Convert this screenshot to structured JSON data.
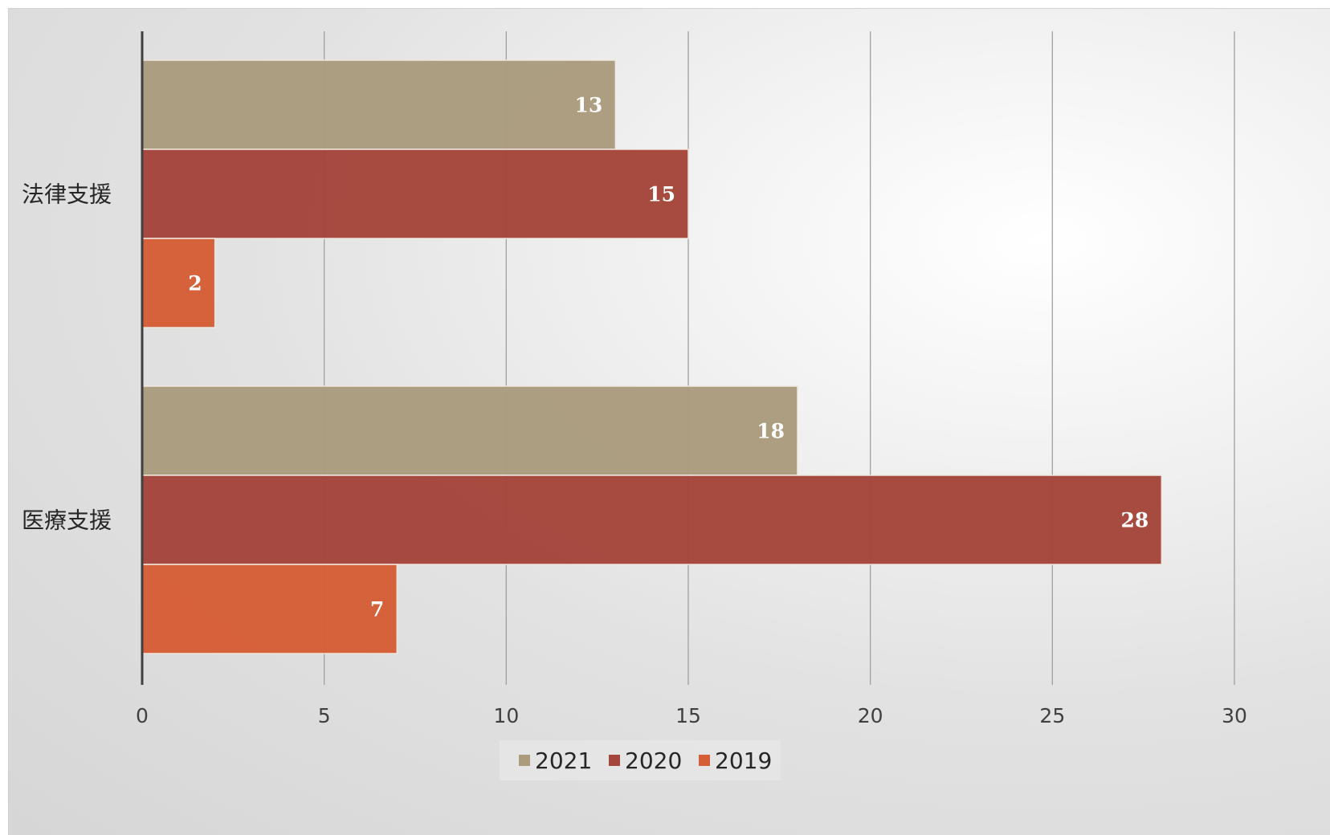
{
  "chart_data": {
    "type": "bar",
    "orientation": "horizontal",
    "categories": [
      "法律支援",
      "医療支援"
    ],
    "series": [
      {
        "name": "2021",
        "values": [
          13,
          18
        ],
        "color": "#ab9c7e"
      },
      {
        "name": "2020",
        "values": [
          15,
          28
        ],
        "color": "#a5463c"
      },
      {
        "name": "2019",
        "values": [
          2,
          7
        ],
        "color": "#d65e36"
      }
    ],
    "xlim": [
      0,
      30
    ],
    "ticks": [
      "0",
      "5",
      "10",
      "15",
      "20",
      "25",
      "30"
    ],
    "grid": true,
    "legend": "bottom",
    "data_labels": true
  }
}
